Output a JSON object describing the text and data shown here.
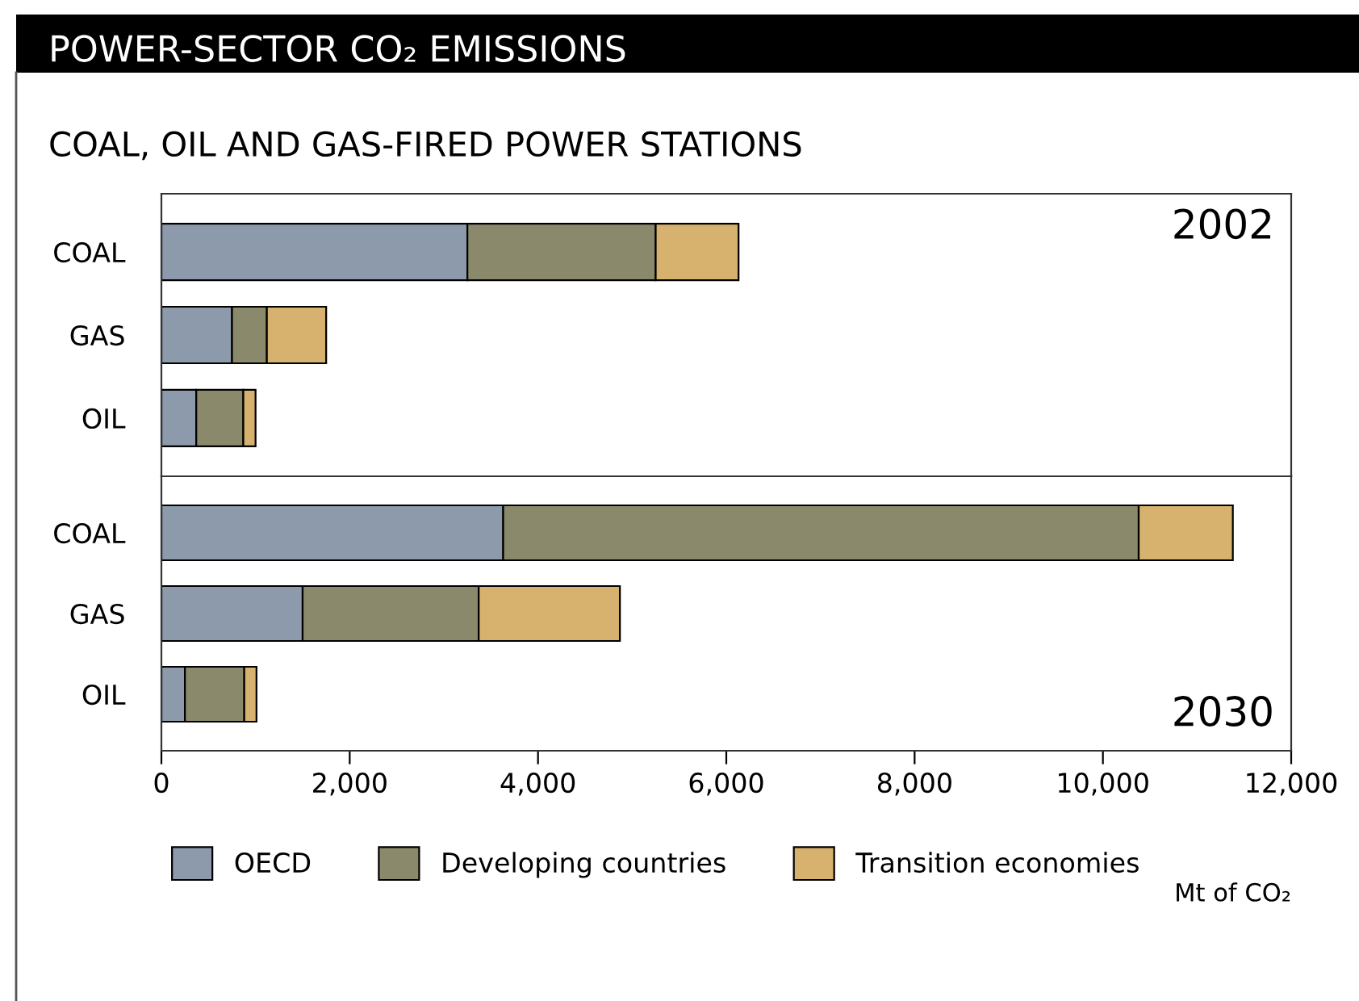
{
  "chart_data": [
    {
      "type": "bar",
      "title": "POWER-SECTOR CO₂ EMISSIONS",
      "subtitle": "COAL, OIL AND GAS-FIRED POWER STATIONS",
      "orientation": "horizontal",
      "stacked": true,
      "categories": [
        "COAL",
        "GAS",
        "OIL"
      ],
      "series": [
        {
          "name": "OECD",
          "color": "#8c9aab",
          "values": [
            3250,
            750,
            370
          ]
        },
        {
          "name": "Developing countries",
          "color": "#8a896b",
          "values": [
            2000,
            370,
            500
          ]
        },
        {
          "name": "Transition economies",
          "color": "#d7b16e",
          "values": [
            880,
            630,
            130
          ]
        }
      ],
      "annotations": [
        "2002"
      ],
      "xlim": [
        0,
        12000
      ],
      "tick_labels": "y",
      "legend": "bottom"
    },
    {
      "type": "bar",
      "orientation": "horizontal",
      "stacked": true,
      "categories": [
        "COAL",
        "GAS",
        "OIL"
      ],
      "series": [
        {
          "color": "#8c9aab",
          "values": [
            3630,
            1500,
            250
          ]
        },
        {
          "color": "#8a896b",
          "values": [
            6750,
            1870,
            630
          ]
        },
        {
          "color": "#d7b16e",
          "values": [
            1000,
            1500,
            130
          ]
        }
      ],
      "annotations": [
        "2030"
      ],
      "xlabel": "Mt of CO₂",
      "xlim": [
        0,
        12000
      ],
      "xticks": [
        {
          "value": 0,
          "label": "0"
        },
        {
          "value": 2000,
          "label": "2,000"
        },
        {
          "value": 4000,
          "label": "4,000"
        },
        {
          "value": 6000,
          "label": "6,000"
        },
        {
          "value": 8000,
          "label": "8,000"
        },
        {
          "value": 10000,
          "label": "10,000"
        },
        {
          "value": 12000,
          "label": "12,000"
        }
      ]
    }
  ]
}
